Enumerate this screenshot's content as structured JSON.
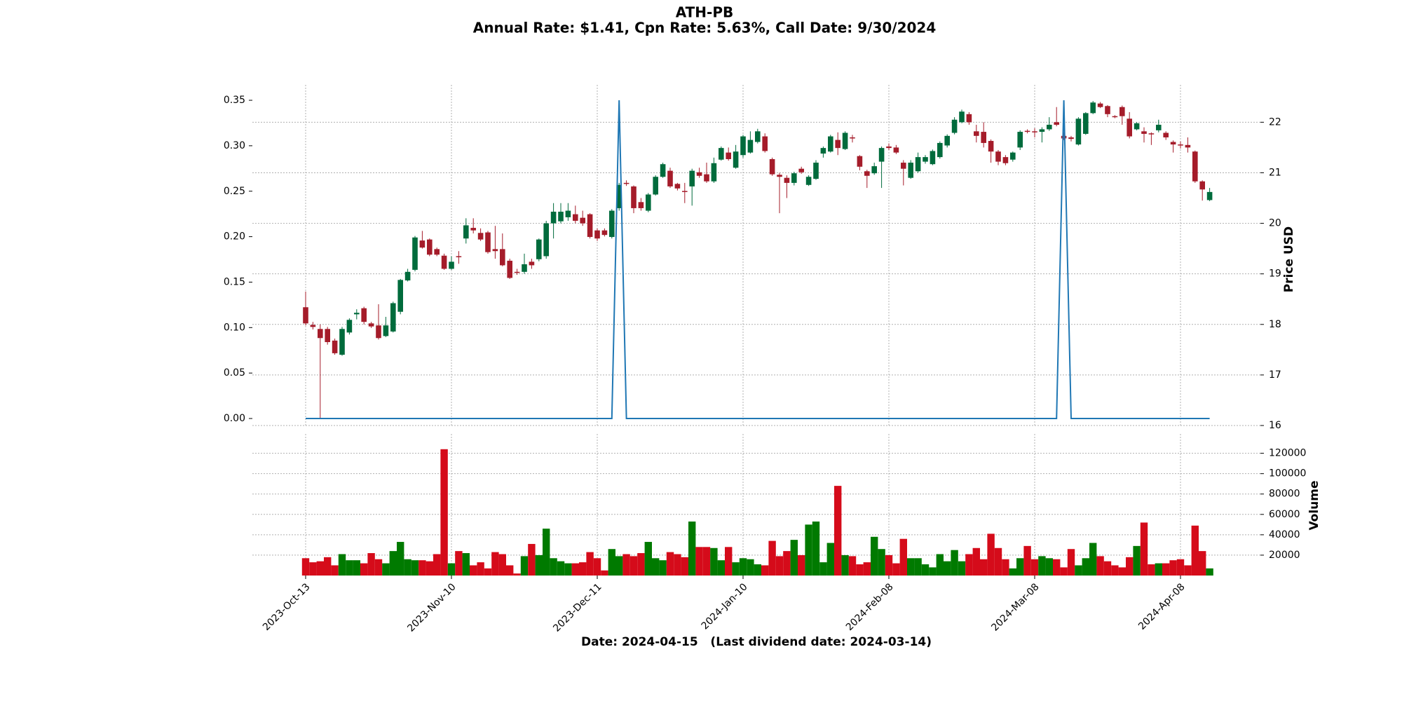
{
  "chart_data": {
    "type": "candlestick",
    "title": "ATH-PB",
    "subtitle": "Annual Rate: $1.41, Cpn Rate: 5.63%, Call Date: 9/30/2024",
    "xlabel": "Date: 2024-04-15   (Last dividend date: 2024-03-14)",
    "ylabel": "Price USD",
    "grid": true,
    "categories": [
      "2023-Oct-13",
      null,
      null,
      null,
      null,
      null,
      null,
      null,
      null,
      null,
      null,
      null,
      null,
      null,
      null,
      null,
      null,
      null,
      null,
      null,
      "2023-Nov-10",
      null,
      null,
      null,
      null,
      null,
      null,
      null,
      null,
      null,
      null,
      null,
      null,
      null,
      null,
      null,
      null,
      null,
      null,
      null,
      "2023-Dec-11",
      null,
      null,
      null,
      null,
      null,
      null,
      null,
      null,
      null,
      null,
      null,
      null,
      null,
      null,
      null,
      null,
      null,
      null,
      null,
      "2024-Jan-10",
      null,
      null,
      null,
      null,
      null,
      null,
      null,
      null,
      null,
      null,
      null,
      null,
      null,
      null,
      null,
      null,
      null,
      null,
      null,
      "2024-Feb-08",
      null,
      null,
      null,
      null,
      null,
      null,
      null,
      null,
      null,
      null,
      null,
      null,
      null,
      null,
      null,
      null,
      null,
      null,
      null,
      "2024-Mar-08",
      null,
      null,
      null,
      null,
      null,
      null,
      null,
      null,
      null,
      null,
      null,
      null,
      null,
      null,
      null,
      null,
      null,
      null,
      null,
      "2024-Apr-08",
      null,
      null,
      null,
      null
    ],
    "open": [
      18.34,
      17.99,
      17.91,
      17.91,
      17.68,
      17.4,
      17.84,
      18.2,
      18.32,
      18.02,
      17.98,
      17.77,
      17.86,
      18.25,
      18.87,
      19.08,
      19.66,
      19.68,
      19.49,
      19.36,
      19.1,
      19.35,
      19.7,
      19.91,
      19.81,
      19.82,
      19.49,
      19.49,
      19.26,
      19.04,
      19.04,
      19.24,
      19.29,
      19.35,
      20.0,
      20.04,
      20.12,
      20.18,
      20.11,
      20.18,
      19.86,
      19.86,
      19.73,
      20.3,
      20.8,
      20.73,
      20.42,
      20.25,
      20.57,
      20.92,
      21.04,
      20.78,
      20.64,
      20.73,
      21.01,
      20.97,
      20.83,
      21.26,
      21.4,
      21.1,
      21.35,
      21.4,
      21.61,
      21.72,
      21.27,
      20.96,
      20.9,
      20.8,
      21.08,
      20.76,
      20.88,
      21.38,
      21.42,
      21.65,
      21.47,
      21.7,
      21.33,
      21.03,
      20.99,
      21.22,
      21.52,
      21.5,
      21.2,
      20.9,
      21.03,
      21.22,
      21.17,
      21.31,
      21.54,
      21.79,
      22.0,
      22.16,
      21.82,
      21.81,
      21.63,
      21.42,
      21.31,
      21.26,
      21.5,
      21.83,
      21.82,
      21.81,
      21.86,
      22.0,
      21.73,
      21.7,
      21.56,
      21.77,
      22.18,
      22.37,
      22.32,
      22.12,
      22.3,
      22.07,
      21.86,
      21.82,
      21.78,
      21.84,
      21.79,
      21.61,
      21.56,
      21.55,
      21.42,
      20.83,
      20.46
    ],
    "high": [
      18.65,
      18.05,
      18.0,
      17.95,
      17.72,
      17.95,
      18.12,
      18.3,
      18.35,
      18.05,
      18.4,
      18.15,
      18.45,
      18.9,
      19.1,
      19.75,
      19.85,
      19.7,
      19.52,
      19.4,
      19.35,
      19.45,
      20.1,
      20.1,
      19.9,
      19.85,
      19.95,
      19.8,
      19.3,
      19.1,
      19.4,
      19.3,
      19.7,
      20.05,
      20.4,
      20.4,
      20.4,
      20.35,
      20.25,
      20.2,
      19.9,
      19.9,
      20.28,
      20.8,
      20.85,
      20.75,
      20.5,
      20.6,
      20.95,
      21.2,
      21.1,
      20.8,
      20.8,
      21.08,
      21.1,
      21.2,
      21.3,
      21.52,
      21.5,
      21.55,
      21.75,
      21.82,
      21.87,
      21.78,
      21.3,
      21.0,
      20.95,
      21.02,
      21.12,
      20.95,
      21.25,
      21.52,
      21.75,
      21.8,
      21.82,
      21.75,
      21.35,
      21.06,
      21.2,
      21.52,
      21.58,
      21.55,
      21.25,
      21.25,
      21.4,
      21.35,
      21.46,
      21.62,
      21.76,
      22.1,
      22.25,
      22.2,
      21.95,
      22.0,
      21.66,
      21.45,
      21.35,
      21.42,
      21.84,
      21.86,
      21.88,
      21.9,
      22.1,
      22.3,
      21.8,
      21.73,
      22.1,
      22.2,
      22.42,
      22.4,
      22.34,
      22.14,
      22.33,
      22.2,
      22.0,
      21.9,
      21.8,
      22.05,
      21.82,
      21.64,
      21.62,
      21.7,
      21.44,
      20.85,
      20.7
    ],
    "low": [
      17.98,
      17.9,
      16.14,
      17.6,
      17.4,
      17.38,
      17.8,
      18.1,
      18.0,
      17.93,
      17.7,
      17.75,
      17.84,
      18.2,
      18.85,
      19.05,
      19.5,
      19.35,
      19.35,
      19.08,
      19.08,
      19.2,
      19.6,
      19.8,
      19.65,
      19.4,
      19.3,
      19.15,
      18.9,
      18.98,
      19.0,
      19.1,
      19.25,
      19.3,
      19.7,
      20.0,
      20.05,
      20.0,
      19.95,
      19.7,
      19.65,
      19.74,
      19.7,
      20.25,
      20.74,
      20.2,
      20.25,
      20.22,
      20.55,
      20.9,
      20.7,
      20.65,
      20.4,
      20.35,
      20.9,
      20.8,
      20.8,
      21.24,
      21.24,
      21.08,
      21.3,
      21.38,
      21.58,
      21.4,
      20.94,
      20.2,
      20.5,
      20.75,
      20.98,
      20.74,
      20.86,
      21.3,
      21.4,
      21.35,
      21.45,
      21.6,
      21.05,
      20.7,
      20.96,
      20.7,
      21.45,
      21.37,
      20.75,
      20.88,
      21.0,
      21.18,
      21.15,
      21.28,
      21.5,
      21.76,
      21.98,
      21.95,
      21.6,
      21.5,
      21.2,
      21.15,
      21.15,
      21.22,
      21.45,
      21.78,
      21.7,
      21.6,
      21.83,
      21.92,
      21.65,
      21.62,
      21.54,
      21.75,
      22.16,
      22.28,
      22.1,
      22.08,
      21.95,
      21.68,
      21.84,
      21.6,
      21.55,
      21.8,
      21.65,
      21.4,
      21.48,
      21.4,
      20.8,
      20.45,
      20.44
    ],
    "close": [
      18.02,
      17.95,
      17.73,
      17.65,
      17.43,
      17.91,
      18.09,
      18.23,
      18.05,
      17.96,
      17.73,
      17.98,
      18.42,
      18.88,
      19.04,
      19.72,
      19.52,
      19.38,
      19.38,
      19.1,
      19.24,
      19.33,
      19.96,
      19.86,
      19.68,
      19.43,
      19.45,
      19.17,
      18.92,
      19.03,
      19.19,
      19.17,
      19.68,
      20.0,
      20.23,
      20.23,
      20.25,
      20.05,
      20.0,
      19.73,
      19.7,
      19.77,
      20.25,
      20.76,
      20.78,
      20.3,
      20.3,
      20.57,
      20.92,
      21.17,
      20.73,
      20.69,
      20.62,
      21.04,
      20.94,
      20.83,
      21.19,
      21.49,
      21.27,
      21.42,
      21.72,
      21.65,
      21.82,
      21.43,
      20.97,
      20.92,
      20.8,
      20.99,
      21.01,
      20.92,
      21.2,
      21.49,
      21.72,
      21.49,
      21.79,
      21.68,
      21.12,
      20.94,
      21.13,
      21.49,
      21.49,
      21.4,
      21.08,
      21.2,
      21.31,
      21.31,
      21.43,
      21.59,
      21.73,
      22.05,
      22.21,
      22.0,
      21.73,
      21.59,
      21.42,
      21.22,
      21.19,
      21.4,
      21.81,
      21.81,
      21.8,
      21.86,
      21.95,
      21.95,
      21.68,
      21.67,
      22.07,
      22.18,
      22.39,
      22.3,
      22.16,
      22.11,
      22.12,
      21.72,
      21.98,
      21.77,
      21.76,
      21.95,
      21.7,
      21.56,
      21.54,
      21.5,
      20.83,
      20.67,
      20.62
    ],
    "up_color": "#006b3c",
    "down_color": "#a51c2a",
    "ylim": [
      16,
      22.74
    ],
    "yticks": [
      16,
      17,
      18,
      19,
      20,
      21,
      22
    ],
    "y2lim": [
      -0.0077,
      0.367
    ],
    "y2ticks": [
      {
        "value": 0,
        "label": "0.00"
      },
      0.05,
      {
        "value": 0.1,
        "label": "0.10"
      },
      0.15,
      {
        "value": 0.2,
        "label": "0.20"
      },
      0.25,
      {
        "value": 0.3,
        "label": "0.30"
      },
      0.35
    ],
    "dividend": {
      "axis": "y2",
      "color": "#1f77b4",
      "values": [
        0,
        0,
        0,
        0,
        0,
        0,
        0,
        0,
        0,
        0,
        0,
        0,
        0,
        0,
        0,
        0,
        0,
        0,
        0,
        0,
        0,
        0,
        0,
        0,
        0,
        0,
        0,
        0,
        0,
        0,
        0,
        0,
        0,
        0,
        0,
        0,
        0,
        0,
        0,
        0,
        0,
        0,
        0,
        0.35,
        0,
        0,
        0,
        0,
        0,
        0,
        0,
        0,
        0,
        0,
        0,
        0,
        0,
        0,
        0,
        0,
        0,
        0,
        0,
        0,
        0,
        0,
        0,
        0,
        0,
        0,
        0,
        0,
        0,
        0,
        0,
        0,
        0,
        0,
        0,
        0,
        0,
        0,
        0,
        0,
        0,
        0,
        0,
        0,
        0,
        0,
        0,
        0,
        0,
        0,
        0,
        0,
        0,
        0,
        0,
        0,
        0,
        0,
        0,
        0,
        0.35,
        0,
        0,
        0,
        0,
        0,
        0,
        0,
        0,
        0,
        0,
        0,
        0,
        0,
        0,
        0,
        0,
        0,
        0,
        0,
        0
      ]
    },
    "volume": {
      "ylabel": "Volume",
      "up_color": "#007a00",
      "down_color": "#d50b1a",
      "ylim": [
        0,
        139000
      ],
      "yticks": [
        20000,
        40000,
        60000,
        80000,
        100000,
        120000
      ],
      "values": [
        17000,
        13000,
        14000,
        18000,
        10000,
        21000,
        15000,
        15000,
        12000,
        22000,
        16000,
        12000,
        24000,
        33000,
        16000,
        15000,
        15000,
        14000,
        21000,
        124000,
        12000,
        24000,
        22000,
        10000,
        13000,
        7000,
        23000,
        21000,
        10000,
        2000,
        19000,
        31000,
        20000,
        46000,
        17000,
        14000,
        12000,
        12000,
        13000,
        23000,
        17000,
        5000,
        26000,
        19000,
        21000,
        19000,
        22000,
        33000,
        17000,
        15000,
        23000,
        21000,
        18000,
        53000,
        28000,
        28000,
        27000,
        15000,
        28000,
        13000,
        17000,
        16000,
        11000,
        10000,
        34000,
        19000,
        24000,
        35000,
        20000,
        50000,
        53000,
        13000,
        32000,
        88000,
        20000,
        19000,
        11000,
        13000,
        38000,
        26000,
        20000,
        12000,
        36000,
        17000,
        17000,
        11000,
        8000,
        21000,
        14000,
        25000,
        14000,
        21000,
        27000,
        16000,
        41000,
        27000,
        16000,
        7000,
        17000,
        29000,
        16000,
        19000,
        17000,
        16000,
        8000,
        26000,
        10000,
        17000,
        32000,
        19000,
        14000,
        10000,
        8000,
        18000,
        29000,
        52000,
        11000,
        12000,
        12000,
        15000,
        16000,
        10000,
        49000,
        24000,
        7000
      ]
    }
  }
}
